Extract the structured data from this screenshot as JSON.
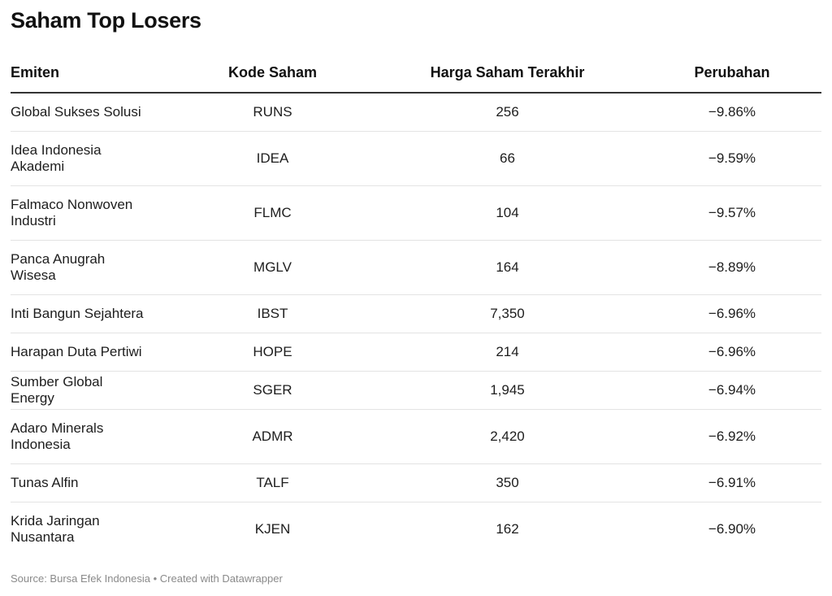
{
  "title": "Saham Top Losers",
  "footer": "Source: Bursa Efek Indonesia • Created with Datawrapper",
  "chart_data": {
    "type": "table",
    "title": "Saham Top Losers",
    "columns": [
      "Emiten",
      "Kode Saham",
      "Harga Saham Terakhir",
      "Perubahan"
    ],
    "rows": [
      [
        "Global Sukses Solusi",
        "RUNS",
        "256",
        "−9.86%"
      ],
      [
        "Idea Indonesia Akademi",
        "IDEA",
        "66",
        "−9.59%"
      ],
      [
        "Falmaco Nonwoven Industri",
        "FLMC",
        "104",
        "−9.57%"
      ],
      [
        "Panca Anugrah Wisesa",
        "MGLV",
        "164",
        "−8.89%"
      ],
      [
        "Inti Bangun Sejahtera",
        "IBST",
        "7,350",
        "−6.96%"
      ],
      [
        "Harapan Duta Pertiwi",
        "HOPE",
        "214",
        "−6.96%"
      ],
      [
        "Sumber Global Energy",
        "SGER",
        "1,945",
        "−6.94%"
      ],
      [
        "Adaro Minerals Indonesia",
        "ADMR",
        "2,420",
        "−6.92%"
      ],
      [
        "Tunas Alfin",
        "TALF",
        "350",
        "−6.91%"
      ],
      [
        "Krida Jaringan Nusantara",
        "KJEN",
        "162",
        "−6.90%"
      ]
    ],
    "source": "Bursa Efek Indonesia"
  }
}
